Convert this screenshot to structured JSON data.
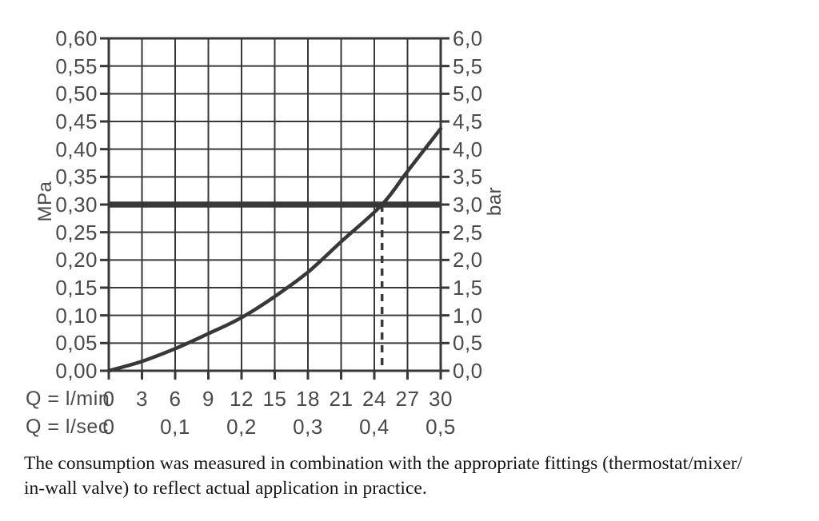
{
  "chart_data": {
    "type": "line",
    "title": "",
    "description": "Flow rate vs pressure loss diagram with grid",
    "x_axis_primary": {
      "label": "Q = l/min",
      "ticks": [
        "0",
        "3",
        "6",
        "9",
        "12",
        "15",
        "18",
        "21",
        "24",
        "27",
        "30"
      ],
      "range": [
        0,
        30
      ]
    },
    "x_axis_secondary": {
      "label": "Q = l/sec",
      "ticks": [
        "0",
        "0,1",
        "0,2",
        "0,3",
        "0,4",
        "0,5"
      ],
      "range": [
        0,
        0.5
      ]
    },
    "y_axis_left": {
      "label": "MPa",
      "ticks": [
        "0,60",
        "0,55",
        "0,50",
        "0,45",
        "0,40",
        "0,35",
        "0,30",
        "0,25",
        "0,20",
        "0,15",
        "0,10",
        "0,05",
        "0,00"
      ],
      "range": [
        0,
        0.6
      ]
    },
    "y_axis_right": {
      "label": "bar",
      "ticks": [
        "6,0",
        "5,5",
        "5,0",
        "4,5",
        "4,0",
        "3,5",
        "3,0",
        "2,5",
        "2,0",
        "1,5",
        "1,0",
        "0,5",
        "0,0"
      ],
      "range": [
        0,
        6
      ]
    },
    "grid": true,
    "legend": false,
    "series": [
      {
        "name": "flow-pressure-curve",
        "points_q_lmin_vs_bar": [
          [
            0,
            0
          ],
          [
            3,
            0.17
          ],
          [
            6,
            0.4
          ],
          [
            9,
            0.67
          ],
          [
            12,
            0.96
          ],
          [
            15,
            1.34
          ],
          [
            18,
            1.78
          ],
          [
            21,
            2.33
          ],
          [
            24.7,
            3.0
          ],
          [
            27,
            3.6
          ],
          [
            30,
            4.37
          ]
        ]
      }
    ],
    "reference_line": {
      "value_bar": 3.0,
      "value_mpa": 0.3
    },
    "operating_point": {
      "q_lmin": 24.7,
      "pressure_bar": 3.0
    }
  },
  "caption": {
    "line1": "The consumption was measured in combination with the appropriate fittings (thermostat/mixer/",
    "line2": "in-wall valve) to reflect actual application in practice."
  },
  "colors": {
    "line": "#383838",
    "label": "#4a4a4a",
    "caption": "#151515",
    "background": "#ffffff"
  }
}
